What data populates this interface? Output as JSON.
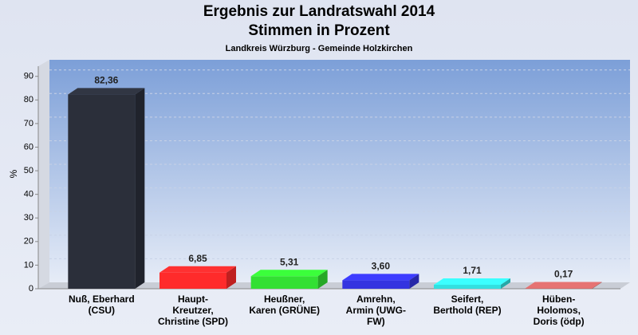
{
  "chart_data": {
    "type": "bar",
    "title": "Ergebnis zur Landratswahl 2014",
    "subtitle": "Stimmen in Prozent",
    "caption": "Landkreis Würzburg - Gemeinde Holzkirchen",
    "y_label": "%",
    "categories": [
      "Nuß, Eberhard\n(CSU)",
      "Haupt-\nKreutzer,\nChristine (SPD)",
      "Heußner,\nKaren (GRÜNE)",
      "Amrehn,\nArmin (UWG-\nFW)",
      "Seifert,\nBerthold (REP)",
      "Hüben-\nHolomos,\nDoris (ödp)"
    ],
    "values": [
      82.36,
      6.85,
      5.31,
      3.6,
      1.71,
      0.17
    ],
    "value_labels": [
      "82,36",
      "6,85",
      "5,31",
      "3,60",
      "1,71",
      "0,17"
    ],
    "colors": [
      "#2b2f3a",
      "#ff2b2b",
      "#33e033",
      "#3434e0",
      "#33e0e0",
      "#c86464"
    ],
    "ylim": [
      0,
      97
    ],
    "yticks": [
      0,
      10,
      20,
      30,
      40,
      50,
      60,
      70,
      80,
      90
    ],
    "grid": true
  }
}
